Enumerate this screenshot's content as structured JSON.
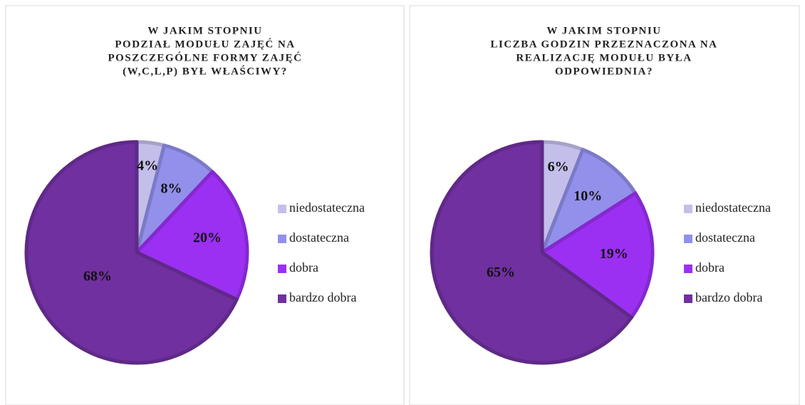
{
  "chart_data": [
    {
      "type": "pie",
      "title": [
        "W JAKIM STOPNIU",
        "PODZIAŁ MODUŁU ZAJĘĆ NA",
        "POSZCZEGÓLNE FORMY ZAJĘĆ",
        "(W,C,L,P) BYŁ WŁAŚCIWY?"
      ],
      "categories": [
        "niedostateczna",
        "dostateczna",
        "dobra",
        "bardzo dobra"
      ],
      "values": [
        4,
        8,
        20,
        68
      ],
      "value_labels": [
        "4%",
        "8%",
        "20%",
        "68%"
      ],
      "colors": [
        "#c3bfea",
        "#9290ea",
        "#9b30f2",
        "#7030a0"
      ],
      "legend": "right"
    },
    {
      "type": "pie",
      "title": [
        "W JAKIM STOPNIU",
        "LICZBA GODZIN PRZEZNACZONA NA",
        "REALIZACJĘ MODUŁU BYŁA",
        "ODPOWIEDNIA?"
      ],
      "categories": [
        "niedostateczna",
        "dostateczna",
        "dobra",
        "bardzo dobra"
      ],
      "values": [
        6,
        10,
        19,
        65
      ],
      "value_labels": [
        "6%",
        "10%",
        "19%",
        "65%"
      ],
      "colors": [
        "#c3bfea",
        "#9290ea",
        "#9b30f2",
        "#7030a0"
      ],
      "legend": "right"
    }
  ]
}
